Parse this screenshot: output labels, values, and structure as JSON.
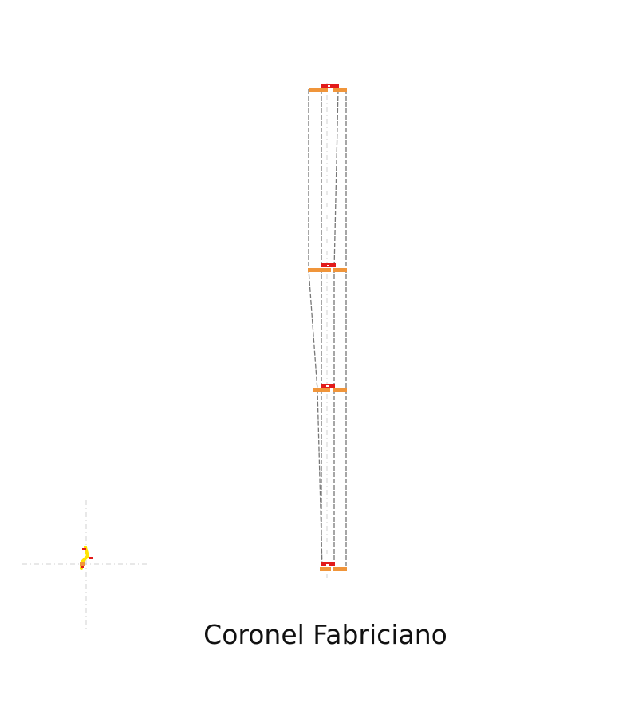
{
  "label": "Coronel Fabriciano",
  "colors": {
    "background": "#ffffff",
    "line": "#777777",
    "axis": "#c8c8c8",
    "platform": "#f0953a",
    "marker": "#e21a1a",
    "icon_yellow": "#ffe400"
  },
  "icons": {
    "route": "station-route-icon"
  }
}
